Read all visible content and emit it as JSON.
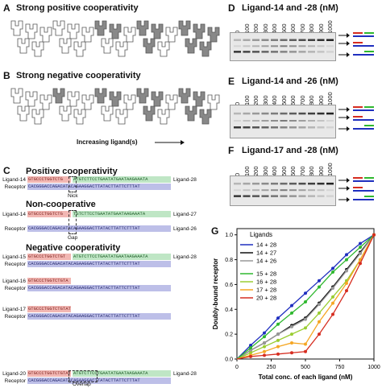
{
  "panelA": {
    "letter": "A",
    "title": "Strong positive cooperativity"
  },
  "panelB": {
    "letter": "B",
    "title": "Strong negative cooperativity"
  },
  "increasing": "Increasing ligand(s)",
  "panelC": {
    "letter": "C",
    "pos_title": "Positive cooperativity",
    "non_title": "Non-cooperative",
    "neg_title": "Negative cooperativity",
    "nick": "Nick",
    "gap": "Gap",
    "overlap": "Overlap",
    "rows": [
      {
        "left": "Ligand-14",
        "red": "GTGCCCTGGTCTG",
        "green": "ATGTCTTCCTGAATATGAATAAGAAATA",
        "right": "Ligand-28"
      },
      {
        "left": "Receptor",
        "blue": "CACGGGACCAGACATACAGAAGGACTTATACTTATTCTTTAT",
        "right": ""
      },
      {
        "left": "Ligand-14",
        "red": "GTGCCCTGGTCTG",
        "green": "TGTCTTCCTGAATATGAATAAGAAATA",
        "right": "Ligand-27"
      },
      {
        "left": "Receptor",
        "blue": "CACGGGACCAGACATACAGAAGGACTTATACTTATTCTTTAT",
        "right": "Ligand-26"
      },
      {
        "left": "Ligand-15",
        "red": "GTGCCCTGGTCTGT",
        "green": "ATGTCTTCCTGAATATGAATAAGAAATA",
        "right": "Ligand-28"
      },
      {
        "left": "Receptor",
        "blue": "CACGGGACCAGACATACAGAAGGACTTATACTTATTCTTTAT",
        "right": ""
      },
      {
        "left": "Ligand-16",
        "red": "GTGCCCTGGTCTGTA",
        "green": "",
        "right": ""
      },
      {
        "left": "Receptor",
        "blue": "CACGGGACCAGACATACAGAAGGACTTATACTTATTCTTTAT",
        "right": ""
      },
      {
        "left": "Ligand-17",
        "red": "GTGCCCTGGTCTGTAT",
        "green": "",
        "right": ""
      },
      {
        "left": "Receptor",
        "blue": "CACGGGACCAGACATACAGAAGGACTTATACTTATTCTTTAT",
        "right": ""
      },
      {
        "left": "Ligand-20",
        "red": "GTGCCCTGGTCTGTATGTC",
        "green": "ATGTCTTCCTGAATATGAATAAGAAATA",
        "right": "Ligand-28"
      },
      {
        "left": "Receptor",
        "blue": "CACGGGACCAGACATACAGAAGGACTTATACTTATTCTTTAT",
        "right": ""
      }
    ]
  },
  "panelD": {
    "letter": "D",
    "title": "Ligand-14 and -28 (nM)"
  },
  "panelE": {
    "letter": "E",
    "title": "Ligand-14 and -26 (nM)"
  },
  "panelF": {
    "letter": "F",
    "title": "Ligand-17 and -28 (nM)"
  },
  "gel_ticks": [
    "0",
    "100",
    "200",
    "300",
    "400",
    "500",
    "600",
    "700",
    "800",
    "900",
    "1000"
  ],
  "chart_data": {
    "type": "scatter",
    "letter": "G",
    "xlabel": "Total conc. of each ligand (nM)",
    "ylabel": "Doubly-bound receptor",
    "xlim": [
      0,
      1000
    ],
    "ylim": [
      0,
      1.05
    ],
    "xticks": [
      "0",
      "250",
      "500",
      "750",
      "1000"
    ],
    "yticks": [
      "0.0",
      "0.2",
      "0.4",
      "0.6",
      "0.8",
      "1.0"
    ],
    "legend_title": "Ligands",
    "legend_position": "top-left",
    "x": [
      0,
      100,
      200,
      300,
      400,
      500,
      600,
      700,
      800,
      900,
      1000
    ],
    "series": [
      {
        "name": "14 + 28",
        "color": "#1f2fbf",
        "values": [
          0,
          0.11,
          0.21,
          0.33,
          0.43,
          0.53,
          0.63,
          0.73,
          0.84,
          0.93,
          1.0
        ]
      },
      {
        "name": "14 + 27",
        "color": "#111111",
        "values": [
          0,
          0.07,
          0.13,
          0.2,
          0.27,
          0.33,
          0.45,
          0.58,
          0.72,
          0.86,
          1.0
        ]
      },
      {
        "name": "14 + 26",
        "color": "#999999",
        "values": [
          0,
          0.07,
          0.13,
          0.2,
          0.26,
          0.32,
          0.44,
          0.57,
          0.71,
          0.85,
          1.0
        ]
      },
      {
        "name": "15 + 28",
        "color": "#2fb82f",
        "values": [
          0,
          0.09,
          0.18,
          0.28,
          0.37,
          0.46,
          0.58,
          0.7,
          0.8,
          0.9,
          1.0
        ]
      },
      {
        "name": "16 + 28",
        "color": "#9acd32",
        "values": [
          0,
          0.05,
          0.1,
          0.15,
          0.2,
          0.25,
          0.37,
          0.5,
          0.63,
          0.8,
          1.0
        ]
      },
      {
        "name": "17 + 28",
        "color": "#f5a623",
        "values": [
          0,
          0.03,
          0.06,
          0.1,
          0.13,
          0.12,
          0.3,
          0.45,
          0.61,
          0.8,
          1.0
        ]
      },
      {
        "name": "20 + 28",
        "color": "#d62d20",
        "values": [
          0,
          0.02,
          0.03,
          0.04,
          0.05,
          0.06,
          0.2,
          0.36,
          0.55,
          0.77,
          1.0
        ]
      }
    ]
  }
}
